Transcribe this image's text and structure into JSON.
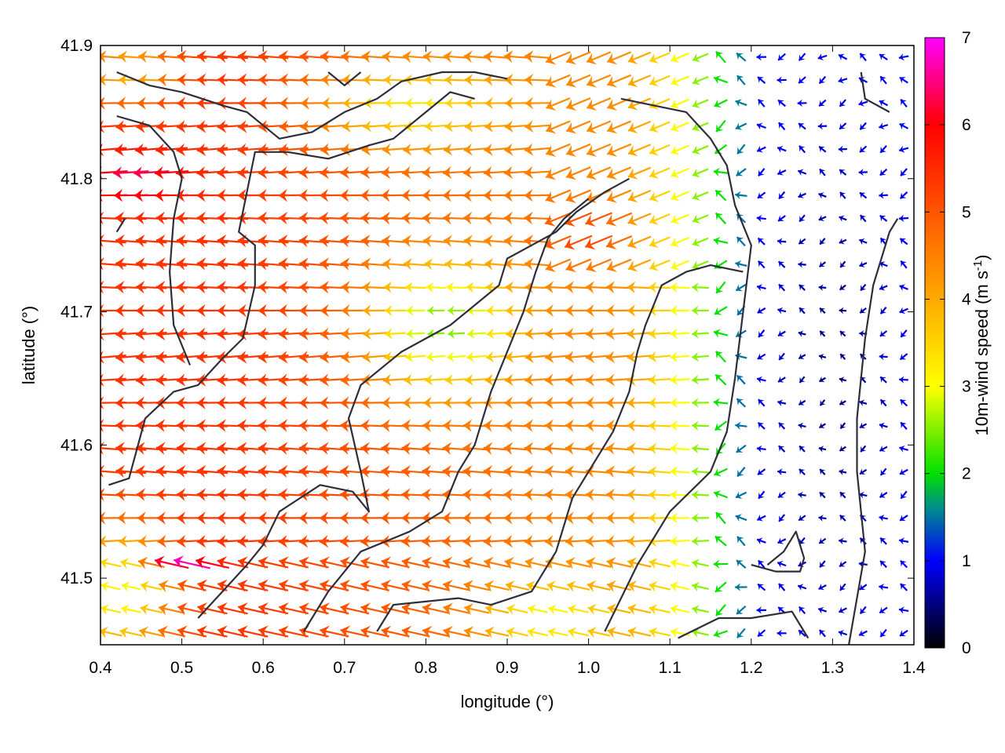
{
  "chart_data": {
    "type": "vector-field",
    "xlabel": "longitude (°)",
    "ylabel": "latitude (°)",
    "colorbar_label": "10m-wind speed (m s",
    "colorbar_label_sup": "-1",
    "colorbar_label_end": ")",
    "xlim": [
      0.4,
      1.4
    ],
    "ylim": [
      41.45,
      41.9
    ],
    "x_ticks": [
      {
        "value": 0.4,
        "label": "0.4"
      },
      {
        "value": 0.5,
        "label": "0.5"
      },
      {
        "value": 0.6,
        "label": "0.6"
      },
      {
        "value": 0.7,
        "label": "0.7"
      },
      {
        "value": 0.8,
        "label": "0.8"
      },
      {
        "value": 0.9,
        "label": "0.9"
      },
      {
        "value": 1.0,
        "label": "1.0"
      },
      {
        "value": 1.1,
        "label": "1.1"
      },
      {
        "value": 1.2,
        "label": "1.2"
      },
      {
        "value": 1.3,
        "label": "1.3"
      },
      {
        "value": 1.4,
        "label": "1.4"
      }
    ],
    "y_ticks": [
      {
        "value": 41.5,
        "label": "41.5"
      },
      {
        "value": 41.6,
        "label": "41.6"
      },
      {
        "value": 41.7,
        "label": "41.7"
      },
      {
        "value": 41.8,
        "label": "41.8"
      },
      {
        "value": 41.9,
        "label": "41.9"
      }
    ],
    "colorbar": {
      "range": [
        0,
        7
      ],
      "ticks": [
        {
          "value": 0,
          "label": "0"
        },
        {
          "value": 1,
          "label": "1"
        },
        {
          "value": 2,
          "label": "2"
        },
        {
          "value": 3,
          "label": "3"
        },
        {
          "value": 4,
          "label": "4"
        },
        {
          "value": 5,
          "label": "5"
        },
        {
          "value": 6,
          "label": "6"
        },
        {
          "value": 7,
          "label": "7"
        }
      ],
      "stops": [
        {
          "value": 0,
          "color": "#000000"
        },
        {
          "value": 1,
          "color": "#0000ff"
        },
        {
          "value": 1.6,
          "color": "#008c8c"
        },
        {
          "value": 2,
          "color": "#00e000"
        },
        {
          "value": 3,
          "color": "#ffff00"
        },
        {
          "value": 4,
          "color": "#ffaa00"
        },
        {
          "value": 5,
          "color": "#ff5500"
        },
        {
          "value": 6,
          "color": "#ff0000"
        },
        {
          "value": 7,
          "color": "#ff00ff"
        }
      ]
    },
    "grid": false,
    "vector_sampling": {
      "nx": 40,
      "ny": 26
    },
    "speed_field_regions": [
      {
        "region": "west (lon 0.40-0.56)",
        "speed": 5.5,
        "direction": "from east"
      },
      {
        "region": "north-west (lon 0.40-0.50, lat 41.78-41.82)",
        "speed": 6.3,
        "direction": "from east"
      },
      {
        "region": "central valley (lon 0.55-1.05)",
        "speed": 4.5,
        "direction": "from east"
      },
      {
        "region": "central plateau (lon 0.75-0.85, lat 41.65-41.72)",
        "speed": 2.5,
        "direction": "from east"
      },
      {
        "region": "east (lon 1.15-1.40)",
        "speed": 1.2,
        "direction": "variable"
      },
      {
        "region": "south-west (lon 0.40-0.50, lat 41.45-41.55)",
        "speed": 2.0,
        "direction": "from east"
      },
      {
        "region": "south-west jet (lon 0.47-0.55, lat 41.51)",
        "speed": 6.0,
        "direction": "from east"
      }
    ],
    "contours": [
      [
        [
          0.41,
          41.57
        ],
        [
          0.435,
          41.575
        ],
        [
          0.455,
          41.62
        ],
        [
          0.49,
          41.64
        ],
        [
          0.52,
          41.645
        ],
        [
          0.55,
          41.665
        ],
        [
          0.575,
          41.68
        ],
        [
          0.59,
          41.72
        ],
        [
          0.59,
          41.75
        ],
        [
          0.57,
          41.76
        ],
        [
          0.58,
          41.79
        ],
        [
          0.59,
          41.82
        ],
        [
          0.63,
          41.82
        ],
        [
          0.68,
          41.815
        ],
        [
          0.73,
          41.825
        ],
        [
          0.76,
          41.83
        ],
        [
          0.8,
          41.85
        ],
        [
          0.83,
          41.865
        ],
        [
          0.86,
          41.86
        ]
      ],
      [
        [
          0.42,
          41.847
        ],
        [
          0.46,
          41.84
        ],
        [
          0.49,
          41.82
        ],
        [
          0.5,
          41.8
        ],
        [
          0.49,
          41.77
        ],
        [
          0.485,
          41.73
        ],
        [
          0.49,
          41.69
        ],
        [
          0.51,
          41.66
        ]
      ],
      [
        [
          0.42,
          41.88
        ],
        [
          0.46,
          41.87
        ],
        [
          0.5,
          41.865
        ],
        [
          0.55,
          41.855
        ],
        [
          0.58,
          41.85
        ],
        [
          0.62,
          41.83
        ],
        [
          0.66,
          41.835
        ],
        [
          0.7,
          41.85
        ],
        [
          0.74,
          41.86
        ],
        [
          0.77,
          41.873
        ],
        [
          0.82,
          41.88
        ],
        [
          0.86,
          41.88
        ],
        [
          0.9,
          41.875
        ]
      ],
      [
        [
          0.52,
          41.47
        ],
        [
          0.55,
          41.49
        ],
        [
          0.58,
          41.51
        ],
        [
          0.6,
          41.525
        ],
        [
          0.62,
          41.55
        ],
        [
          0.67,
          41.57
        ],
        [
          0.71,
          41.565
        ],
        [
          0.73,
          41.55
        ],
        [
          0.72,
          41.58
        ],
        [
          0.705,
          41.62
        ],
        [
          0.72,
          41.645
        ],
        [
          0.77,
          41.67
        ],
        [
          0.8,
          41.68
        ],
        [
          0.83,
          41.69
        ],
        [
          0.85,
          41.7
        ],
        [
          0.87,
          41.71
        ],
        [
          0.89,
          41.72
        ],
        [
          0.9,
          41.74
        ],
        [
          0.93,
          41.75
        ],
        [
          0.96,
          41.76
        ],
        [
          0.985,
          41.775
        ],
        [
          1.02,
          41.79
        ],
        [
          1.05,
          41.8
        ]
      ],
      [
        [
          0.65,
          41.46
        ],
        [
          0.68,
          41.49
        ],
        [
          0.72,
          41.52
        ],
        [
          0.78,
          41.535
        ],
        [
          0.82,
          41.55
        ],
        [
          0.84,
          41.58
        ],
        [
          0.86,
          41.6
        ],
        [
          0.88,
          41.64
        ],
        [
          0.9,
          41.67
        ],
        [
          0.92,
          41.7
        ],
        [
          0.935,
          41.73
        ],
        [
          0.95,
          41.755
        ],
        [
          0.97,
          41.77
        ],
        [
          1.0,
          41.785
        ]
      ],
      [
        [
          0.74,
          41.46
        ],
        [
          0.76,
          41.48
        ],
        [
          0.84,
          41.485
        ],
        [
          0.88,
          41.48
        ],
        [
          0.93,
          41.49
        ],
        [
          0.96,
          41.52
        ],
        [
          0.98,
          41.56
        ],
        [
          1.0,
          41.58
        ],
        [
          1.03,
          41.61
        ],
        [
          1.05,
          41.64
        ],
        [
          1.06,
          41.67
        ],
        [
          1.07,
          41.69
        ],
        [
          1.09,
          41.72
        ],
        [
          1.12,
          41.73
        ],
        [
          1.15,
          41.735
        ],
        [
          1.19,
          41.73
        ]
      ],
      [
        [
          1.02,
          41.46
        ],
        [
          1.06,
          41.51
        ],
        [
          1.1,
          41.55
        ],
        [
          1.15,
          41.58
        ],
        [
          1.17,
          41.61
        ],
        [
          1.18,
          41.65
        ],
        [
          1.19,
          41.7
        ],
        [
          1.2,
          41.75
        ],
        [
          1.18,
          41.78
        ],
        [
          1.17,
          41.81
        ],
        [
          1.15,
          41.83
        ],
        [
          1.12,
          41.85
        ],
        [
          1.08,
          41.855
        ],
        [
          1.04,
          41.86
        ]
      ],
      [
        [
          1.11,
          41.455
        ],
        [
          1.16,
          41.47
        ],
        [
          1.2,
          41.47
        ],
        [
          1.25,
          41.475
        ],
        [
          1.27,
          41.455
        ]
      ],
      [
        [
          1.2,
          41.51
        ],
        [
          1.23,
          41.505
        ],
        [
          1.26,
          41.505
        ],
        [
          1.265,
          41.515
        ],
        [
          1.255,
          41.535
        ],
        [
          1.24,
          41.52
        ],
        [
          1.22,
          41.51
        ]
      ],
      [
        [
          1.32,
          41.45
        ],
        [
          1.34,
          41.52
        ],
        [
          1.33,
          41.58
        ],
        [
          1.33,
          41.62
        ],
        [
          1.34,
          41.68
        ],
        [
          1.35,
          41.72
        ],
        [
          1.37,
          41.76
        ],
        [
          1.38,
          41.77
        ]
      ],
      [
        [
          1.335,
          41.88
        ],
        [
          1.34,
          41.86
        ],
        [
          1.37,
          41.85
        ]
      ],
      [
        [
          0.43,
          41.77
        ],
        [
          0.42,
          41.76
        ]
      ],
      [
        [
          0.68,
          41.88
        ],
        [
          0.7,
          41.87
        ],
        [
          0.72,
          41.88
        ]
      ]
    ]
  }
}
